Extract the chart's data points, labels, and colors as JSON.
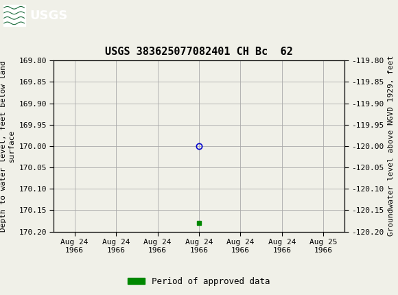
{
  "title": "USGS 383625077082401 CH Bc  62",
  "ylabel_left": "Depth to water level, feet below land\nsurface",
  "ylabel_right": "Groundwater level above NGVD 1929, feet",
  "ylim_left_top": 169.8,
  "ylim_left_bottom": 170.2,
  "ylim_right_top": -119.8,
  "ylim_right_bottom": -120.2,
  "yticks_left": [
    169.8,
    169.85,
    169.9,
    169.95,
    170.0,
    170.05,
    170.1,
    170.15,
    170.2
  ],
  "ytick_labels_left": [
    "169.80",
    "169.85",
    "169.90",
    "169.95",
    "170.00",
    "170.05",
    "170.10",
    "170.15",
    "170.20"
  ],
  "yticks_right": [
    -119.8,
    -119.85,
    -119.9,
    -119.95,
    -120.0,
    -120.05,
    -120.1,
    -120.15,
    -120.2
  ],
  "ytick_labels_right": [
    "-119.80",
    "-119.85",
    "-119.90",
    "-119.95",
    "-120.00",
    "-120.05",
    "-120.10",
    "-120.15",
    "-120.20"
  ],
  "xtick_positions": [
    0,
    1,
    2,
    3,
    4,
    5,
    6
  ],
  "xtick_labels": [
    "Aug 24\n1966",
    "Aug 24\n1966",
    "Aug 24\n1966",
    "Aug 24\n1966",
    "Aug 24\n1966",
    "Aug 24\n1966",
    "Aug 25\n1966"
  ],
  "xlim": [
    -0.5,
    6.5
  ],
  "data_point_x": 3,
  "data_point_y": 170.0,
  "data_point_color": "#0000cc",
  "data_point_marker": "o",
  "data_point_markersize": 6,
  "green_marker_x": 3,
  "green_marker_y": 170.18,
  "green_marker_color": "#008800",
  "legend_label": "Period of approved data",
  "legend_color": "#008800",
  "background_color": "#f0f0e8",
  "plot_bg_color": "#f0f0e8",
  "grid_color": "#aaaaaa",
  "header_bg_color": "#1a6b3a",
  "header_text_color": "#ffffff",
  "title_fontsize": 11,
  "axis_label_fontsize": 8,
  "tick_fontsize": 8,
  "legend_fontsize": 9
}
